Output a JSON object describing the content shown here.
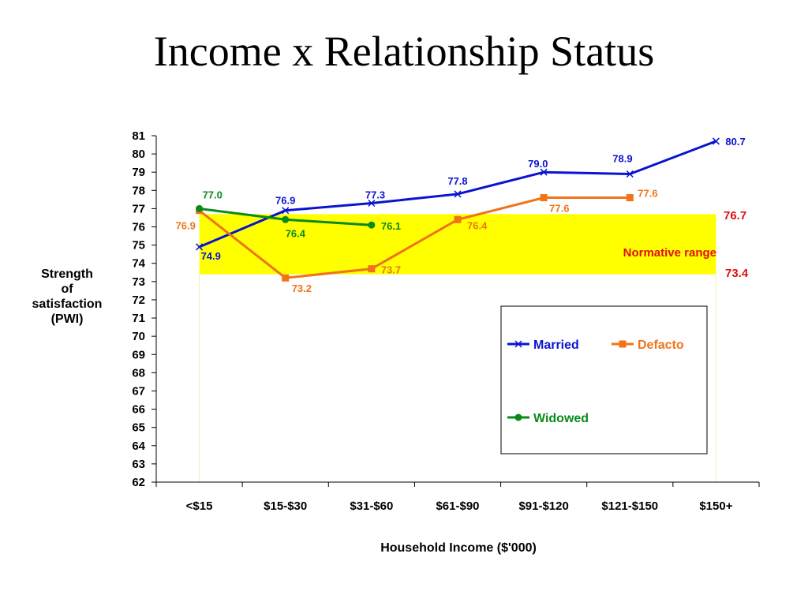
{
  "page": {
    "title": "Income x Relationship Status"
  },
  "chart_data": {
    "type": "line",
    "title": "Income x Relationship Status",
    "xlabel": "Household Income ($'000)",
    "ylabel": "Strength of satisfaction (PWI)",
    "ylabel_lines": [
      "Strength",
      "of",
      "satisfaction",
      "(PWI)"
    ],
    "ylim": [
      62,
      81
    ],
    "grid": false,
    "categories": [
      "<$15",
      "$15-$30",
      "$31-$60",
      "$61-$90",
      "$91-$120",
      "$121-$150",
      "$150+"
    ],
    "series": [
      {
        "name": "Married",
        "color": "#0a14d0",
        "marker": "x",
        "values": [
          74.9,
          76.9,
          77.3,
          77.8,
          79.0,
          78.9,
          80.7
        ],
        "labels": [
          "74.9",
          "76.9",
          "77.3",
          "77.8",
          "79.0",
          "78.9",
          "80.7"
        ]
      },
      {
        "name": "Defacto",
        "color": "#f07318",
        "marker": "square",
        "values": [
          76.9,
          73.2,
          73.7,
          76.4,
          77.6,
          77.6,
          null
        ],
        "labels": [
          "76.9",
          "73.2",
          "73.7",
          "76.4",
          "77.6",
          "77.6",
          null
        ]
      },
      {
        "name": "Widowed",
        "color": "#0a8a1a",
        "marker": "circle",
        "values": [
          77.0,
          76.4,
          76.1,
          null,
          null,
          null,
          null
        ],
        "labels": [
          "77.0",
          "76.4",
          "76.1",
          null,
          null,
          null,
          null
        ]
      }
    ],
    "normative_range": {
      "label": "Normative range",
      "low": 73.4,
      "high": 76.7,
      "low_label": "73.4",
      "high_label": "76.7",
      "color": "#ffff00",
      "label_color": "#e01010"
    },
    "legend": {
      "placement": "lower-right",
      "entries": [
        "Married",
        "Defacto",
        "Widowed"
      ]
    }
  }
}
